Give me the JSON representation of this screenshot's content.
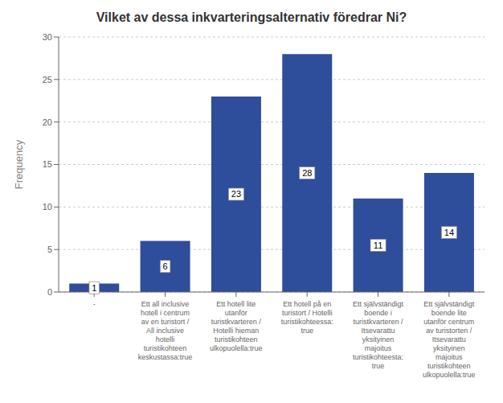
{
  "chart_data": {
    "type": "bar",
    "title": "Vilket av dessa inkvarteringsalternativ föredrar Ni?",
    "ylabel": "Frequency",
    "categories": [
      "-",
      "Ett all inclusive\nhotell i centrum\nav en turistort /\nAll inclusive\nhotelli\nturistikohteen\nkeskustassa:true",
      "Ett hotell lite\nutanför\nturistkvarteren /\nHotelli hieman\nturistikohteen\nulkopuolella:true",
      "Ett hotell på en\nturistort / Hotelli\nturistikohteessa:\ntrue",
      "Ett självständigt\nboende i\nturistkvarteren /\nItsevarattu\nyksityinen\nmajoitus\nturistikohteesta:\ntrue",
      "Ett självständigt\nboende lite\nutanför centrum\nav turistorten /\nItsevarattu\nyksityinen\nmajoitus\nturistikohteen\nulkopuolella:true"
    ],
    "values": [
      1,
      6,
      23,
      28,
      11,
      14
    ],
    "color": "#2E4D9B",
    "ylim": [
      0,
      30
    ],
    "yticks": [
      0,
      5,
      10,
      15,
      20,
      25,
      30
    ],
    "grid": true,
    "data_labels": true
  }
}
